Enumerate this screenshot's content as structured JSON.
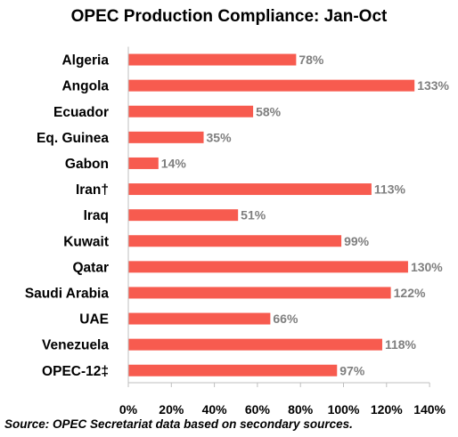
{
  "chart_data": {
    "type": "bar",
    "orientation": "horizontal",
    "title": "OPEC Production Compliance: Jan-Oct",
    "source": "Source: OPEC Secretariat data based on  secondary sources.",
    "categories": [
      "Algeria",
      "Angola",
      "Ecuador",
      "Eq. Guinea",
      "Gabon",
      "Iran†",
      "Iraq",
      "Kuwait",
      "Qatar",
      "Saudi Arabia",
      "UAE",
      "Venezuela",
      "OPEC-12‡"
    ],
    "values": [
      78,
      133,
      58,
      35,
      14,
      113,
      51,
      99,
      130,
      122,
      66,
      118,
      97
    ],
    "data_labels": [
      "78%",
      "133%",
      "58%",
      "35%",
      "14%",
      "113%",
      "51%",
      "99%",
      "130%",
      "122%",
      "66%",
      "118%",
      "97%"
    ],
    "xlim": [
      0,
      140
    ],
    "xticks": [
      0,
      20,
      40,
      60,
      80,
      100,
      120,
      140
    ],
    "xtick_labels": [
      "0%",
      "20%",
      "40%",
      "60%",
      "80%",
      "100%",
      "120%",
      "140%"
    ],
    "xlabel": "",
    "ylabel": "",
    "grid": false,
    "legend": "none",
    "colors": {
      "bar": "#f75b4f",
      "value_label": "#7f7f7f",
      "axis": "#bfbfbf"
    }
  }
}
